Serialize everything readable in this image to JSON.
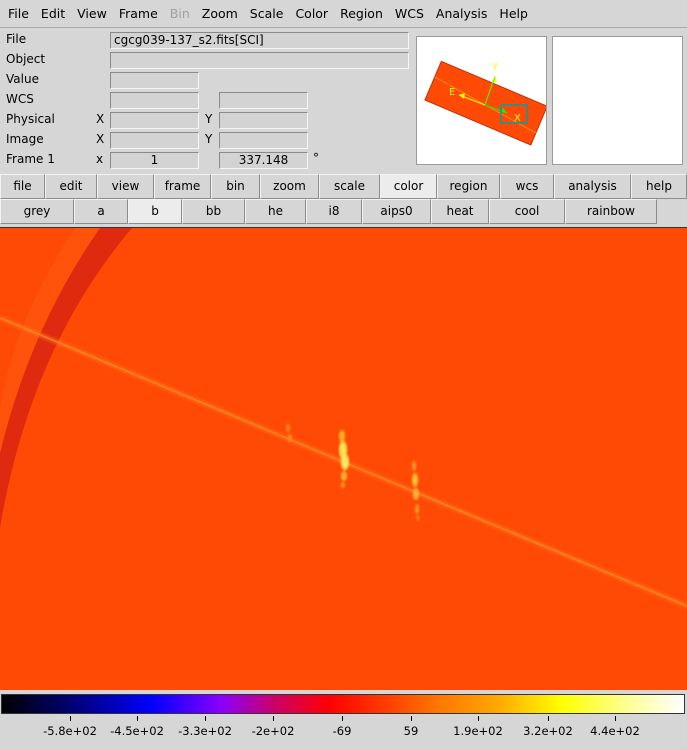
{
  "menubar": [
    "File",
    "Edit",
    "View",
    "Frame",
    "Bin",
    "Zoom",
    "Scale",
    "Color",
    "Region",
    "WCS",
    "Analysis",
    "Help"
  ],
  "menubar_disabled": [
    "Bin"
  ],
  "info": {
    "file_label": "File",
    "file_value": "cgcg039-137_s2.fits[SCI]",
    "object_label": "Object",
    "object_value": "",
    "value_label": "Value",
    "value_value": "",
    "wcs_label": "WCS",
    "physical_label": "Physical",
    "image_label": "Image",
    "frame_label": "Frame 1",
    "x_upper": "X",
    "y_upper": "Y",
    "x_lower": "x",
    "frame_x": "1",
    "frame_angle": "337.148",
    "degree_symbol": "°"
  },
  "panner": {
    "compass_e": "E",
    "compass_y": "Y",
    "compass_x": "X",
    "bbox_color": "#00a0a0",
    "compass_color": "#ffff00"
  },
  "main_buttons": [
    "file",
    "edit",
    "view",
    "frame",
    "bin",
    "zoom",
    "scale",
    "color",
    "region",
    "wcs",
    "analysis",
    "help"
  ],
  "main_active": "color",
  "color_buttons": [
    "grey",
    "a",
    "b",
    "bb",
    "he",
    "i8",
    "aips0",
    "heat",
    "cool",
    "rainbow"
  ],
  "color_active": "b",
  "image": {
    "background_color": "#ff4a06",
    "streak_color": "#ff8a20",
    "arc_color": "#e02a10",
    "source_color": "#ffd84a"
  },
  "colorbar": {
    "labels": [
      "-5.8e+02",
      "-4.5e+02",
      "-3.3e+02",
      "-2e+02",
      "-69",
      "59",
      "1.9e+02",
      "3.2e+02",
      "4.4e+02"
    ]
  }
}
